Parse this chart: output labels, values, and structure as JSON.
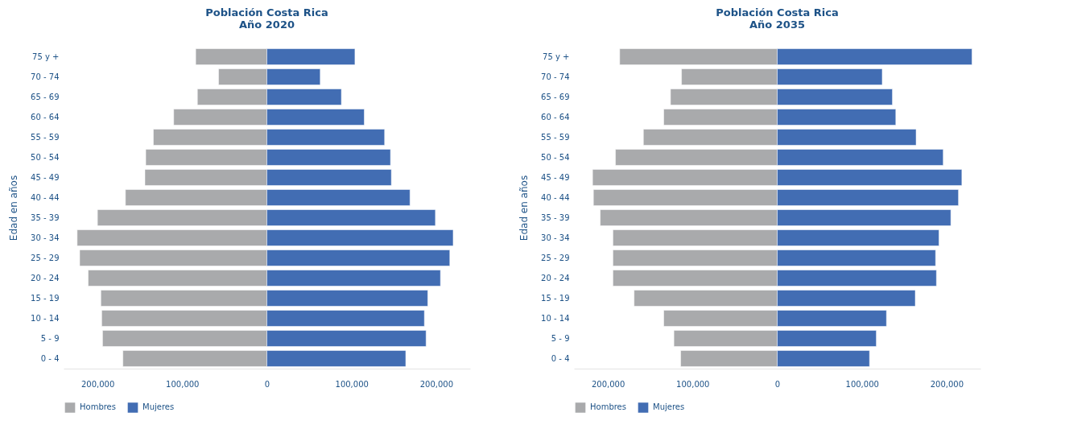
{
  "chart_data": [
    {
      "type": "bar",
      "orientation": "horizontal",
      "title": "Población Costa Rica\nAño 2020",
      "ylabel": "Edad en años",
      "categories": [
        "75 y +",
        "70 - 74",
        "65 - 69",
        "60 - 64",
        "55 - 59",
        "50 - 54",
        "45 - 49",
        "40 - 44",
        "35 - 39",
        "30 - 34",
        "25 - 29",
        "20 - 24",
        "15 - 19",
        "10 - 14",
        "5 - 9",
        "0 - 4"
      ],
      "series": [
        {
          "name": "Hombres",
          "color": "#a9aaac",
          "values": [
            -84000,
            -57000,
            -82000,
            -110000,
            -134000,
            -143000,
            -144000,
            -167000,
            -200000,
            -224000,
            -221000,
            -211000,
            -196000,
            -195000,
            -194000,
            -170000
          ]
        },
        {
          "name": "Mujeres",
          "color": "#426db3",
          "values": [
            104000,
            63000,
            88000,
            115000,
            139000,
            146000,
            147000,
            169000,
            199000,
            220000,
            216000,
            205000,
            190000,
            186000,
            188000,
            164000
          ]
        }
      ],
      "stacked": true,
      "xlim": [
        -240000,
        240000
      ],
      "xticks": [
        {
          "value": -200000,
          "label": "200,000"
        },
        {
          "value": -100000,
          "label": "100,000"
        },
        0,
        {
          "value": 100000,
          "label": "100,000"
        },
        {
          "value": 200000,
          "label": "200,000"
        }
      ],
      "legend": "bottom"
    },
    {
      "type": "bar",
      "orientation": "horizontal",
      "title": "Población Costa Rica\nAño 2035",
      "ylabel": "Edad en años",
      "categories": [
        "75 y +",
        "70 - 74",
        "65 - 69",
        "60 - 64",
        "55 - 59",
        "50 - 54",
        "45 - 49",
        "40 - 44",
        "35 - 39",
        "30 - 34",
        "25 - 29",
        "20 - 24",
        "15 - 19",
        "10 - 14",
        "5 - 9",
        "0 - 4"
      ],
      "series": [
        {
          "name": "Hombres",
          "color": "#a9aaac",
          "values": [
            -186000,
            -113000,
            -126000,
            -134000,
            -158000,
            -191000,
            -218000,
            -217000,
            -209000,
            -194000,
            -194000,
            -194000,
            -169000,
            -134000,
            -122000,
            -114000
          ]
        },
        {
          "name": "Mujeres",
          "color": "#426db3",
          "values": [
            230000,
            124000,
            136000,
            140000,
            164000,
            196000,
            218000,
            214000,
            205000,
            191000,
            187000,
            188000,
            163000,
            129000,
            117000,
            109000
          ]
        }
      ],
      "stacked": true,
      "xlim": [
        -240000,
        240000
      ],
      "xticks": [
        {
          "value": -200000,
          "label": "200,000"
        },
        {
          "value": -100000,
          "label": "100,000"
        },
        0,
        {
          "value": 100000,
          "label": "100,000"
        },
        {
          "value": 200000,
          "label": "200,000"
        }
      ],
      "legend": "bottom"
    }
  ]
}
